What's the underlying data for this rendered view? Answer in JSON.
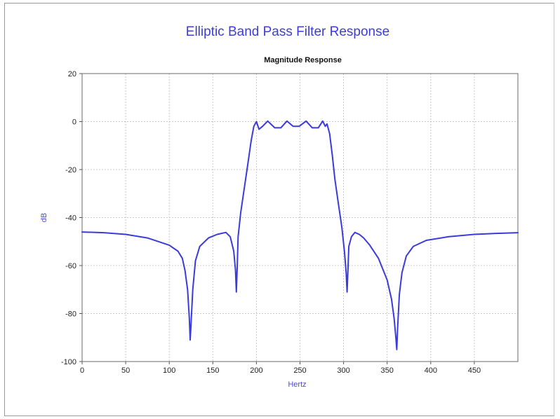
{
  "window": {
    "title": "Elliptic Band Pass Filter Response"
  },
  "colors": {
    "curve": "#3b3bdc",
    "title": "#3d3dd6",
    "axis_label": "#4a4ad8",
    "grid": "#c8c8c8"
  },
  "chart_data": {
    "type": "line",
    "title": "Magnitude Response",
    "xlabel": "Hertz",
    "ylabel": "dB",
    "xlim": [
      0,
      500
    ],
    "ylim": [
      -100,
      20
    ],
    "x_ticks": [
      0,
      50,
      100,
      150,
      200,
      250,
      300,
      350,
      400,
      450
    ],
    "y_ticks": [
      20,
      0,
      -20,
      -40,
      -60,
      -80,
      -100
    ],
    "grid": true,
    "legend": "none",
    "series": [
      {
        "x": [
          0,
          25,
          50,
          75,
          100,
          110,
          115,
          118,
          121,
          123,
          124,
          125,
          127,
          130,
          135,
          145,
          155,
          165,
          170,
          174,
          176,
          177,
          178,
          179,
          182,
          186,
          190,
          194,
          197,
          200,
          203,
          207,
          213,
          221,
          228,
          235,
          242,
          249,
          257,
          264,
          271,
          276,
          279,
          281,
          284,
          287,
          290,
          294,
          298,
          301,
          303,
          304,
          305,
          306,
          309,
          313,
          318,
          323,
          330,
          340,
          350,
          355,
          358,
          360,
          361,
          362,
          364,
          367,
          372,
          380,
          395,
          420,
          450,
          475,
          500
        ],
        "y": [
          -46,
          -46.3,
          -47,
          -48.5,
          -51.5,
          -54,
          -57,
          -62,
          -70,
          -82,
          -91,
          -84,
          -70,
          -58,
          -52,
          -48.5,
          -47,
          -46.2,
          -48,
          -54,
          -62,
          -71,
          -60,
          -48,
          -38,
          -28,
          -18,
          -8,
          -2,
          0,
          -3.2,
          -2,
          0.2,
          -2.6,
          -2.6,
          0.2,
          -2,
          -2,
          0.2,
          -2.6,
          -2.6,
          0.2,
          -2,
          -1,
          -5,
          -14,
          -24,
          -34,
          -44,
          -54,
          -63,
          -71,
          -62,
          -52,
          -48,
          -46.2,
          -47,
          -48.5,
          -51.5,
          -57,
          -66,
          -74,
          -82,
          -90,
          -95,
          -86,
          -72,
          -63,
          -56,
          -52,
          -49.5,
          -48,
          -47,
          -46.6,
          -46.3
        ]
      }
    ]
  }
}
